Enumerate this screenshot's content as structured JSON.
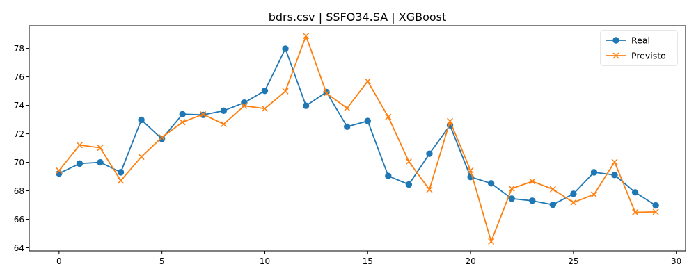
{
  "chart_data": {
    "type": "line",
    "title": "bdrs.csv | SSFO34.SA | XGBoost",
    "xlabel": "",
    "ylabel": "",
    "xlim": [
      -1.45,
      30.45
    ],
    "ylim": [
      63.78,
      79.59
    ],
    "xticks": [
      0,
      5,
      10,
      15,
      20,
      25,
      30
    ],
    "yticks": [
      64,
      66,
      68,
      70,
      72,
      74,
      76,
      78
    ],
    "grid": false,
    "legend_position": "upper right",
    "x": [
      0,
      1,
      2,
      3,
      4,
      5,
      6,
      7,
      8,
      9,
      10,
      11,
      12,
      13,
      14,
      15,
      16,
      17,
      18,
      19,
      20,
      21,
      22,
      23,
      24,
      25,
      26,
      27,
      28,
      29
    ],
    "series": [
      {
        "name": "Real",
        "color": "#1f77b4",
        "marker": "circle",
        "values": [
          69.22,
          69.91,
          70.0,
          69.3,
          72.98,
          71.64,
          73.38,
          73.33,
          73.62,
          74.19,
          75.02,
          77.98,
          73.97,
          74.93,
          72.5,
          72.9,
          69.04,
          68.44,
          70.6,
          72.6,
          68.97,
          68.52,
          67.45,
          67.3,
          67.02,
          67.79,
          69.3,
          69.11,
          67.89,
          66.97
        ]
      },
      {
        "name": "Previsto",
        "color": "#ff7f0e",
        "marker": "x",
        "values": [
          69.42,
          71.21,
          71.02,
          68.71,
          70.39,
          71.75,
          72.82,
          73.37,
          72.68,
          73.97,
          73.77,
          74.99,
          78.87,
          74.84,
          73.8,
          75.69,
          73.19,
          70.05,
          68.08,
          72.89,
          69.43,
          64.44,
          68.15,
          68.66,
          68.11,
          67.18,
          67.74,
          70.02,
          66.49,
          66.52
        ]
      }
    ]
  }
}
